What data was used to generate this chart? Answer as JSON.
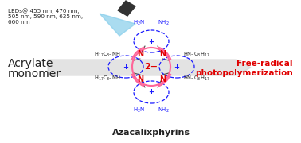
{
  "title": "Azacalixphyrins",
  "left_text_line1": "Acrylate",
  "left_text_line2": "monomer",
  "right_text_line1": "Free-radical",
  "right_text_line2": "photopolymerization",
  "led_text": "LEDs@ 455 nm, 470 nm,\n505 nm, 590 nm, 625 nm,\n660 nm",
  "center_label": "2−",
  "blue_color": "#1a1aff",
  "red_color": "#e00000",
  "pink_color": "#ff6699",
  "dark_color": "#222222",
  "gray_arrow_color": "#c8c8c8",
  "background": "#ffffff"
}
